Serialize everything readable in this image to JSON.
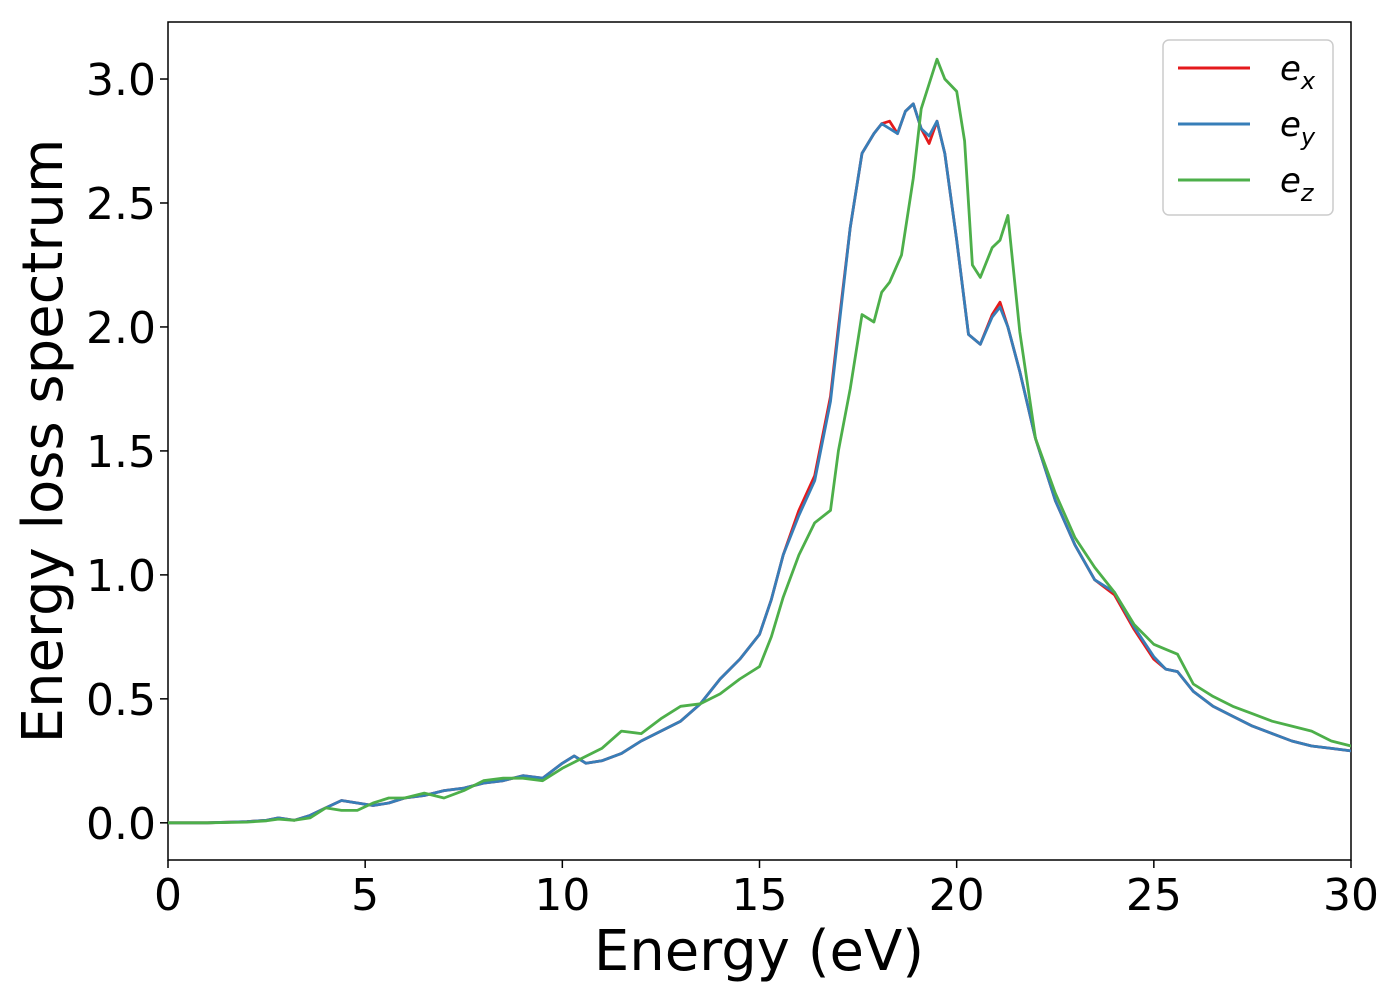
{
  "chart_data": {
    "type": "line",
    "title": "",
    "xlabel": "Energy (eV)",
    "ylabel": "Energy loss spectrum",
    "xlim": [
      0,
      30
    ],
    "ylim": [
      -0.15,
      3.23
    ],
    "xticks": [
      0,
      5,
      10,
      15,
      20,
      25,
      30
    ],
    "xtick_labels": [
      "0",
      "5",
      "10",
      "15",
      "20",
      "25",
      "30"
    ],
    "yticks": [
      0.0,
      0.5,
      1.0,
      1.5,
      2.0,
      2.5,
      3.0
    ],
    "ytick_labels": [
      "0.0",
      "0.5",
      "1.0",
      "1.5",
      "2.0",
      "2.5",
      "3.0"
    ],
    "grid": false,
    "legend": "top-right",
    "series": [
      {
        "name": "e",
        "subscript": "x",
        "color": "#e41a1c",
        "x": [
          0,
          1,
          2,
          2.5,
          2.8,
          3.2,
          3.6,
          4,
          4.4,
          4.8,
          5.2,
          5.6,
          6,
          6.5,
          7,
          7.5,
          8,
          8.5,
          9,
          9.5,
          10,
          10.3,
          10.6,
          11,
          11.5,
          12,
          12.5,
          13,
          13.5,
          14,
          14.5,
          15,
          15.3,
          15.6,
          16,
          16.4,
          16.8,
          17,
          17.3,
          17.6,
          17.9,
          18.1,
          18.3,
          18.5,
          18.7,
          18.9,
          19.1,
          19.3,
          19.5,
          19.7,
          20,
          20.3,
          20.6,
          20.9,
          21.1,
          21.3,
          21.6,
          22,
          22.5,
          23,
          23.5,
          24,
          24.5,
          25,
          25.3,
          25.6,
          26,
          26.5,
          27,
          27.5,
          28,
          28.5,
          29,
          29.5,
          30
        ],
        "values": [
          0.0,
          0.0,
          0.005,
          0.01,
          0.02,
          0.01,
          0.03,
          0.06,
          0.09,
          0.08,
          0.07,
          0.08,
          0.1,
          0.11,
          0.13,
          0.14,
          0.16,
          0.17,
          0.19,
          0.18,
          0.24,
          0.27,
          0.24,
          0.25,
          0.28,
          0.33,
          0.37,
          0.41,
          0.48,
          0.58,
          0.66,
          0.76,
          0.9,
          1.08,
          1.26,
          1.4,
          1.72,
          2.0,
          2.4,
          2.7,
          2.78,
          2.82,
          2.83,
          2.78,
          2.87,
          2.9,
          2.8,
          2.74,
          2.83,
          2.7,
          2.35,
          1.97,
          1.93,
          2.05,
          2.1,
          2.0,
          1.82,
          1.55,
          1.3,
          1.12,
          0.98,
          0.92,
          0.78,
          0.66,
          0.62,
          0.61,
          0.53,
          0.47,
          0.43,
          0.39,
          0.36,
          0.33,
          0.31,
          0.3,
          0.29
        ]
      },
      {
        "name": "e",
        "subscript": "y",
        "color": "#377eb8",
        "x": [
          0,
          1,
          2,
          2.5,
          2.8,
          3.2,
          3.6,
          4,
          4.4,
          4.8,
          5.2,
          5.6,
          6,
          6.5,
          7,
          7.5,
          8,
          8.5,
          9,
          9.5,
          10,
          10.3,
          10.6,
          11,
          11.5,
          12,
          12.5,
          13,
          13.5,
          14,
          14.5,
          15,
          15.3,
          15.6,
          16,
          16.4,
          16.8,
          17,
          17.3,
          17.6,
          17.9,
          18.1,
          18.3,
          18.5,
          18.7,
          18.9,
          19.1,
          19.3,
          19.5,
          19.7,
          20,
          20.3,
          20.6,
          20.9,
          21.1,
          21.3,
          21.6,
          22,
          22.5,
          23,
          23.5,
          24,
          24.5,
          25,
          25.3,
          25.6,
          26,
          26.5,
          27,
          27.5,
          28,
          28.5,
          29,
          29.5,
          30
        ],
        "values": [
          0.0,
          0.0,
          0.005,
          0.01,
          0.02,
          0.01,
          0.03,
          0.06,
          0.09,
          0.08,
          0.07,
          0.08,
          0.1,
          0.11,
          0.13,
          0.14,
          0.16,
          0.17,
          0.19,
          0.18,
          0.24,
          0.27,
          0.24,
          0.25,
          0.28,
          0.33,
          0.37,
          0.41,
          0.48,
          0.58,
          0.66,
          0.76,
          0.9,
          1.08,
          1.24,
          1.38,
          1.7,
          1.98,
          2.4,
          2.7,
          2.78,
          2.82,
          2.8,
          2.78,
          2.87,
          2.9,
          2.8,
          2.77,
          2.83,
          2.7,
          2.35,
          1.97,
          1.93,
          2.04,
          2.08,
          2.0,
          1.82,
          1.55,
          1.3,
          1.12,
          0.98,
          0.93,
          0.79,
          0.67,
          0.62,
          0.61,
          0.53,
          0.47,
          0.43,
          0.39,
          0.36,
          0.33,
          0.31,
          0.3,
          0.29
        ]
      },
      {
        "name": "e",
        "subscript": "z",
        "color": "#4daf4a",
        "x": [
          0,
          1,
          2,
          2.5,
          2.8,
          3.2,
          3.6,
          4,
          4.4,
          4.8,
          5.2,
          5.6,
          6,
          6.5,
          7,
          7.5,
          8,
          8.5,
          9,
          9.5,
          10,
          10.5,
          11,
          11.5,
          12,
          12.5,
          13,
          13.5,
          14,
          14.5,
          15,
          15.3,
          15.6,
          16,
          16.4,
          16.8,
          17,
          17.3,
          17.6,
          17.9,
          18.1,
          18.3,
          18.6,
          18.9,
          19.1,
          19.3,
          19.5,
          19.7,
          20,
          20.2,
          20.4,
          20.6,
          20.9,
          21.1,
          21.3,
          21.6,
          22,
          22.5,
          23,
          23.5,
          24,
          24.5,
          25,
          25.3,
          25.6,
          26,
          26.5,
          27,
          27.5,
          28,
          28.5,
          29,
          29.5,
          30
        ],
        "values": [
          0.0,
          0.0,
          0.003,
          0.008,
          0.015,
          0.01,
          0.02,
          0.06,
          0.05,
          0.05,
          0.08,
          0.1,
          0.1,
          0.12,
          0.1,
          0.13,
          0.17,
          0.18,
          0.18,
          0.17,
          0.22,
          0.26,
          0.3,
          0.37,
          0.36,
          0.42,
          0.47,
          0.48,
          0.52,
          0.58,
          0.63,
          0.75,
          0.91,
          1.08,
          1.21,
          1.26,
          1.5,
          1.75,
          2.05,
          2.02,
          2.14,
          2.18,
          2.29,
          2.6,
          2.88,
          2.98,
          3.08,
          3.0,
          2.95,
          2.75,
          2.25,
          2.2,
          2.32,
          2.35,
          2.45,
          1.98,
          1.55,
          1.33,
          1.15,
          1.03,
          0.93,
          0.8,
          0.72,
          0.7,
          0.68,
          0.56,
          0.51,
          0.47,
          0.44,
          0.41,
          0.39,
          0.37,
          0.33,
          0.31
        ]
      }
    ]
  }
}
